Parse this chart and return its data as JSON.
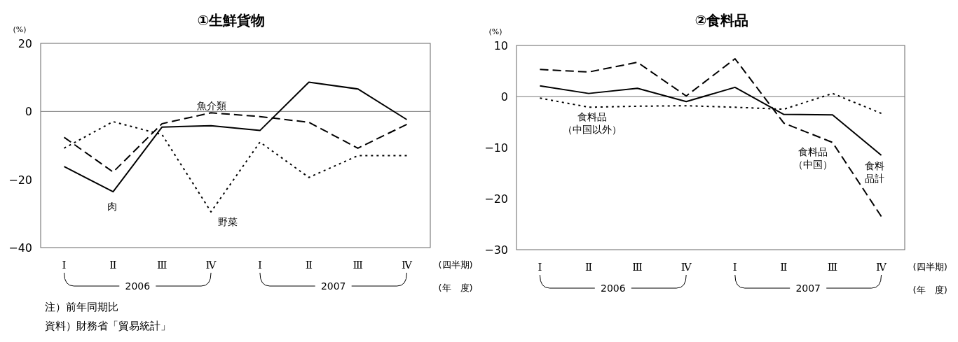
{
  "chart_data": [
    {
      "type": "line",
      "title": "①生鮮貨物",
      "ylabel": "(%)",
      "xlabel": "(四半期)",
      "categories": [
        "Ⅰ",
        "Ⅱ",
        "Ⅲ",
        "Ⅳ",
        "Ⅰ",
        "Ⅱ",
        "Ⅲ",
        "Ⅳ"
      ],
      "ylim": [
        -40,
        20
      ],
      "yticks": [
        -40,
        -20,
        0,
        20
      ],
      "grid": false,
      "marker": "none",
      "ref_lines": [
        {
          "axis": "y",
          "value": 0,
          "color": "#777777"
        }
      ],
      "series": [
        {
          "name": "肉",
          "color": "#000000",
          "line_style": "solid",
          "values": [
            -16.2,
            -23.6,
            -4.6,
            -4.2,
            -5.6,
            8.6,
            6.6,
            -2.4
          ]
        },
        {
          "name": "魚介類",
          "color": "#000000",
          "line_style": "dashed",
          "values": [
            -7.6,
            -17.8,
            -3.6,
            -0.4,
            -1.5,
            -3.2,
            -10.8,
            -3.8
          ]
        },
        {
          "name": "野菜",
          "color": "#000000",
          "line_style": "dotted",
          "values": [
            -10.8,
            -3,
            -6.8,
            -29.5,
            -9,
            -19.4,
            -13,
            -13
          ]
        }
      ],
      "annotations": [
        "2006",
        "2007",
        "(年　度)",
        "注）前年同期比",
        "資料）財務省「貿易統計」"
      ]
    },
    {
      "type": "line",
      "title": "②食料品",
      "ylabel": "(%)",
      "xlabel": "(四半期)",
      "categories": [
        "Ⅰ",
        "Ⅱ",
        "Ⅲ",
        "Ⅳ",
        "Ⅰ",
        "Ⅱ",
        "Ⅲ",
        "Ⅳ"
      ],
      "ylim": [
        -30,
        10
      ],
      "yticks": [
        -30,
        -20,
        -10,
        0,
        10
      ],
      "grid": false,
      "marker": "none",
      "ref_lines": [
        {
          "axis": "y",
          "value": 0,
          "color": "#777777"
        }
      ],
      "series": [
        {
          "name": "食料品計",
          "color": "#000000",
          "line_style": "solid",
          "values": [
            2.1,
            0.6,
            1.6,
            -1,
            1.8,
            -3.5,
            -3.6,
            -11.5
          ]
        },
        {
          "name": "食料品（中国）",
          "color": "#000000",
          "line_style": "dashed",
          "values": [
            5.3,
            4.8,
            6.7,
            0.1,
            7.4,
            -5.2,
            -9,
            -23.5
          ]
        },
        {
          "name": "食料品（中国以外）",
          "color": "#000000",
          "line_style": "dotted",
          "values": [
            -0.3,
            -2.1,
            -1.9,
            -1.8,
            -2.1,
            -2.5,
            0.6,
            -3.3
          ]
        }
      ],
      "annotations": [
        "2006",
        "2007",
        "(年　度)"
      ]
    }
  ]
}
